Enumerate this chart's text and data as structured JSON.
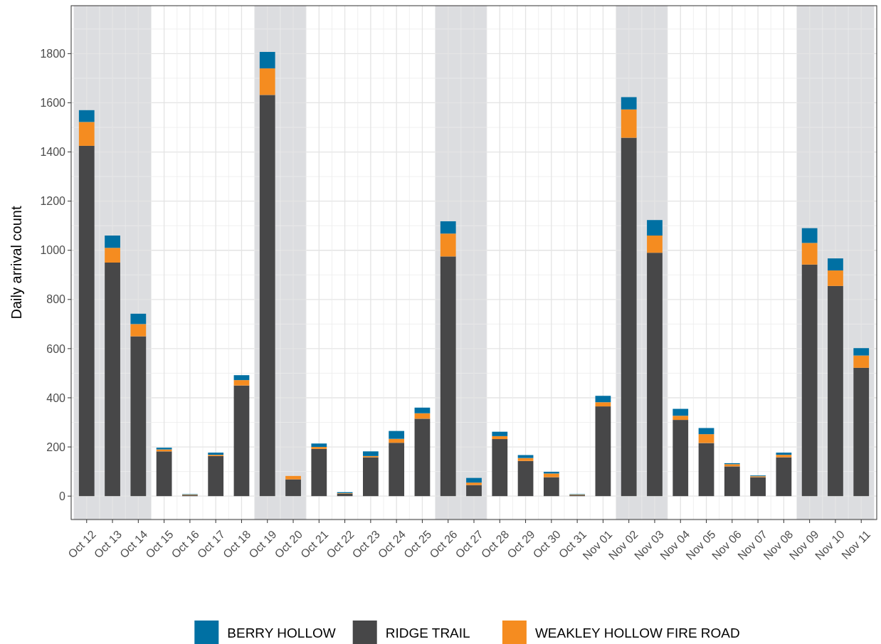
{
  "chart_data": {
    "type": "bar",
    "stacked": true,
    "ylabel": "Daily arrival count",
    "categories": [
      "Oct 12",
      "Oct 13",
      "Oct 14",
      "Oct 15",
      "Oct 16",
      "Oct 17",
      "Oct 18",
      "Oct 19",
      "Oct 20",
      "Oct 21",
      "Oct 22",
      "Oct 23",
      "Oct 24",
      "Oct 25",
      "Oct 26",
      "Oct 27",
      "Oct 28",
      "Oct 29",
      "Oct 30",
      "Oct 31",
      "Nov 01",
      "Nov 02",
      "Nov 03",
      "Nov 04",
      "Nov 05",
      "Nov 06",
      "Nov 07",
      "Nov 08",
      "Nov 09",
      "Nov 10",
      "Nov 11"
    ],
    "series": [
      {
        "name": "RIDGE TRAIL",
        "color": "#474748",
        "values": [
          1425,
          950,
          650,
          182,
          4,
          163,
          450,
          1632,
          68,
          192,
          10,
          158,
          217,
          315,
          975,
          45,
          232,
          143,
          77,
          4,
          365,
          1458,
          990,
          310,
          216,
          121,
          77,
          158,
          942,
          855,
          522
        ]
      },
      {
        "name": "WEAKLEY HOLLOW FIRE ROAD",
        "color": "#f58c20",
        "values": [
          97,
          60,
          50,
          8,
          2,
          5,
          22,
          108,
          14,
          8,
          2,
          5,
          16,
          22,
          93,
          10,
          12,
          12,
          15,
          2,
          17,
          115,
          70,
          17,
          36,
          9,
          4,
          10,
          88,
          63,
          50
        ]
      },
      {
        "name": "BERRY HOLLOW",
        "color": "#0070a3",
        "values": [
          48,
          50,
          42,
          7,
          2,
          9,
          20,
          67,
          0,
          14,
          4,
          19,
          32,
          23,
          50,
          19,
          18,
          12,
          7,
          2,
          26,
          50,
          63,
          28,
          25,
          4,
          3,
          9,
          60,
          49,
          30
        ]
      }
    ],
    "ylim": [
      -95,
      1995
    ],
    "yticks": [
      0,
      200,
      400,
      600,
      800,
      1000,
      1200,
      1400,
      1600,
      1800
    ],
    "grid": true,
    "legend": "bottom",
    "bands": [
      {
        "axis": "x",
        "from": "Oct 12",
        "to": "Oct 14",
        "color": "#dcdde0"
      },
      {
        "axis": "x",
        "from": "Oct 19",
        "to": "Oct 20",
        "color": "#dcdde0"
      },
      {
        "axis": "x",
        "from": "Oct 26",
        "to": "Oct 27",
        "color": "#dcdde0"
      },
      {
        "axis": "x",
        "from": "Nov 02",
        "to": "Nov 03",
        "color": "#dcdde0"
      },
      {
        "axis": "x",
        "from": "Nov 09",
        "to": "Nov 11",
        "color": "#dcdde0"
      }
    ]
  }
}
